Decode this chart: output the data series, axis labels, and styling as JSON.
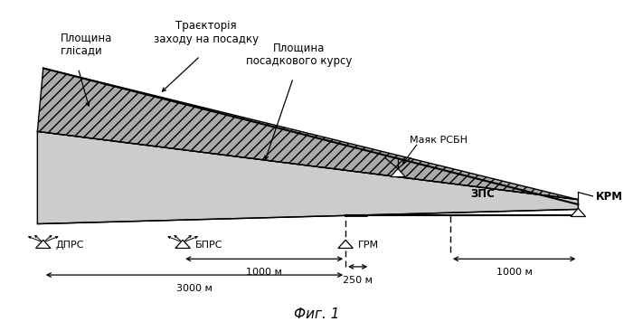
{
  "title": "Фиг. 1",
  "background_color": "#ffffff",
  "labels": {
    "trajectory": "Траєкторія\nзаходу на посадку",
    "glidepath": "Площина\nглісади",
    "landing_course": "Площина\nпосадкового курсу",
    "beacon": "Маяк РСБН",
    "zps": "ЗПС",
    "krm": "КРМ",
    "dprs": "ДПРС",
    "bprs": "БПРС",
    "grm": "ГРМ",
    "dist_1000_1": "1000 м",
    "dist_3000": "3000 м",
    "dist_250": "250 м",
    "dist_1000_2": "1000 м"
  }
}
